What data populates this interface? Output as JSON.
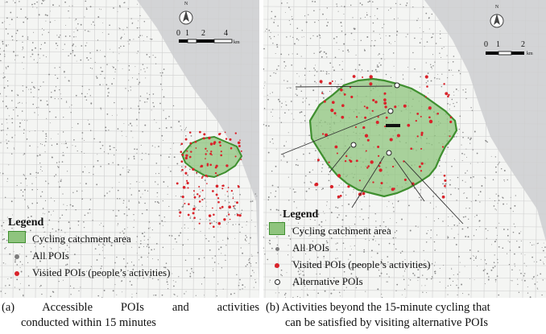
{
  "panel_a": {
    "scale_labels": [
      "0",
      "1",
      "2",
      "4"
    ],
    "scale_unit": "km",
    "north_label": "N",
    "legend": {
      "title": "Legend",
      "items": [
        {
          "label": "Cycling catchment area",
          "symbol": "green-square"
        },
        {
          "label": "All POIs",
          "symbol": "gray-dot"
        },
        {
          "label": "Visited POIs (people’s activities)",
          "symbol": "red-dot"
        }
      ]
    },
    "caption_line1": "(a) Accessible POIs and activities",
    "caption_line2": "conducted within 15 minutes"
  },
  "panel_b": {
    "scale_labels": [
      "0",
      "1",
      "2"
    ],
    "scale_unit": "km",
    "north_label": "N",
    "legend": {
      "title": "Legend",
      "items": [
        {
          "label": "Cycling catchment area",
          "symbol": "green-square"
        },
        {
          "label": "All POIs",
          "symbol": "gray-dot"
        },
        {
          "label": "Visited POIs (people’s activities)",
          "symbol": "red-dot"
        },
        {
          "label": "Alternative POIs",
          "symbol": "white-dot"
        }
      ]
    },
    "caption_line1": "(b) Activities beyond the 15-minute cycling that",
    "caption_line2": "can be satisfied by visiting alternative POIs"
  },
  "colors": {
    "catchment_fill": "#8fc47e",
    "catchment_stroke": "#3f8f2f",
    "water": "#d3d4d6",
    "poi_gray": "#7d7d7d",
    "poi_red": "#d9232a"
  }
}
